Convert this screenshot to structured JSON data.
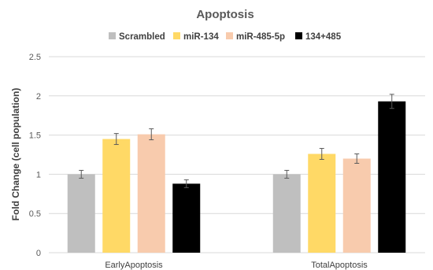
{
  "chart_data": {
    "type": "bar",
    "title": "Apoptosis",
    "ylabel": "Fold Change (cell population)",
    "xlabel": "",
    "categories": [
      "EarlyApoptosis",
      "TotalApoptosis"
    ],
    "ylim": [
      0,
      2.5
    ],
    "yticks": [
      "0",
      "0.5",
      "1",
      "1.5",
      "2",
      "2.5"
    ],
    "ytick_values": [
      0,
      0.5,
      1,
      1.5,
      2,
      2.5
    ],
    "grid": true,
    "legend_position": "top",
    "series": [
      {
        "name": "Scrambled",
        "color": "#bfbfbf",
        "values": [
          1.0,
          1.0
        ],
        "errors": [
          0.05,
          0.05
        ]
      },
      {
        "name": "miR-134",
        "color": "#ffd966",
        "values": [
          1.45,
          1.26
        ],
        "errors": [
          0.07,
          0.07
        ]
      },
      {
        "name": "miR-485-5p",
        "color": "#f8cbad",
        "values": [
          1.51,
          1.2
        ],
        "errors": [
          0.07,
          0.06
        ]
      },
      {
        "name": "134+485",
        "color": "#000000",
        "values": [
          0.88,
          1.93
        ],
        "errors": [
          0.05,
          0.09
        ]
      }
    ]
  }
}
